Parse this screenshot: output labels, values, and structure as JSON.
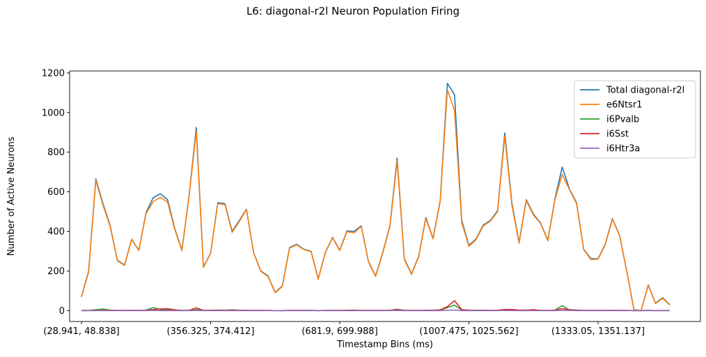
{
  "chart_data": {
    "type": "line",
    "title": "L6: diagonal-r2l Neuron Population Firing",
    "xlabel": "Timestamp Bins (ms)",
    "ylabel": "Number of Active Neurons",
    "ylim": [
      -55,
      1210
    ],
    "yticks": [
      0,
      200,
      400,
      600,
      800,
      1000,
      1200
    ],
    "xtick_labels": [
      {
        "index": 0,
        "label": "(28.941, 48.838]"
      },
      {
        "index": 18,
        "label": "(356.325, 374.412]"
      },
      {
        "index": 36,
        "label": "(681.9, 699.988]"
      },
      {
        "index": 54,
        "label": "(1007.475, 1025.562]"
      },
      {
        "index": 72,
        "label": "(1333.05, 1351.137]"
      }
    ],
    "grid": false,
    "legend_position": "top-right",
    "series": [
      {
        "name": "Total diagonal-r2l",
        "color": "#1f77b4",
        "values": [
          70,
          200,
          665,
          540,
          430,
          255,
          230,
          360,
          305,
          495,
          570,
          590,
          560,
          415,
          305,
          580,
          925,
          220,
          290,
          545,
          540,
          400,
          455,
          512,
          292,
          200,
          175,
          92,
          125,
          318,
          335,
          310,
          300,
          160,
          295,
          370,
          305,
          402,
          400,
          428,
          248,
          175,
          295,
          430,
          770,
          262,
          185,
          275,
          470,
          365,
          555,
          1148,
          1090,
          455,
          330,
          362,
          432,
          455,
          505,
          897,
          540,
          345,
          560,
          487,
          442,
          355,
          565,
          725,
          615,
          545,
          310,
          262,
          262,
          335,
          465,
          380,
          200,
          5,
          0,
          130,
          38,
          65,
          30
        ]
      },
      {
        "name": "e6Ntsr1",
        "color": "#ff7f0e",
        "values": [
          68,
          195,
          658,
          532,
          425,
          252,
          228,
          358,
          303,
          490,
          550,
          572,
          548,
          410,
          302,
          575,
          905,
          218,
          288,
          540,
          535,
          395,
          450,
          510,
          290,
          198,
          172,
          90,
          122,
          315,
          332,
          308,
          298,
          158,
          293,
          368,
          303,
          398,
          393,
          425,
          245,
          172,
          292,
          426,
          755,
          258,
          182,
          272,
          465,
          362,
          550,
          1115,
          1010,
          445,
          325,
          358,
          428,
          452,
          500,
          880,
          530,
          340,
          555,
          482,
          440,
          352,
          560,
          688,
          612,
          540,
          308,
          258,
          260,
          332,
          462,
          378,
          198,
          3,
          0,
          128,
          36,
          62,
          28
        ]
      },
      {
        "name": "i6Pvalb",
        "color": "#2ca02c",
        "values": [
          0,
          0,
          5,
          8,
          3,
          1,
          1,
          2,
          1,
          3,
          15,
          5,
          4,
          2,
          1,
          2,
          5,
          1,
          2,
          3,
          2,
          4,
          2,
          2,
          1,
          1,
          1,
          0,
          0,
          1,
          1,
          1,
          1,
          0,
          1,
          1,
          1,
          2,
          3,
          1,
          1,
          1,
          1,
          2,
          7,
          2,
          1,
          1,
          2,
          1,
          2,
          15,
          28,
          3,
          2,
          2,
          2,
          1,
          2,
          3,
          3,
          2,
          3,
          2,
          2,
          1,
          3,
          25,
          3,
          3,
          1,
          1,
          1,
          1,
          1,
          1,
          1,
          0,
          0,
          1,
          0,
          0,
          0
        ]
      },
      {
        "name": "i6Sst",
        "color": "#d62728",
        "values": [
          1,
          1,
          1,
          2,
          2,
          1,
          1,
          1,
          1,
          2,
          5,
          8,
          10,
          4,
          1,
          1,
          14,
          1,
          1,
          2,
          2,
          2,
          1,
          2,
          1,
          1,
          1,
          0,
          0,
          1,
          1,
          1,
          1,
          0,
          1,
          1,
          1,
          1,
          2,
          1,
          1,
          1,
          1,
          1,
          5,
          1,
          1,
          1,
          2,
          2,
          4,
          20,
          50,
          5,
          2,
          1,
          2,
          1,
          2,
          6,
          6,
          3,
          2,
          5,
          1,
          1,
          2,
          10,
          5,
          2,
          1,
          1,
          1,
          1,
          2,
          1,
          1,
          0,
          0,
          1,
          0,
          1,
          0
        ]
      },
      {
        "name": "i6Htr3a",
        "color": "#9467bd",
        "values": [
          0,
          0,
          0,
          0,
          0,
          0,
          0,
          0,
          0,
          0,
          1,
          0,
          0,
          0,
          0,
          0,
          1,
          0,
          0,
          0,
          0,
          0,
          0,
          0,
          0,
          0,
          0,
          0,
          0,
          0,
          0,
          0,
          0,
          0,
          0,
          0,
          0,
          0,
          0,
          0,
          0,
          0,
          0,
          0,
          1,
          0,
          0,
          0,
          0,
          0,
          0,
          2,
          3,
          0,
          0,
          0,
          0,
          0,
          0,
          1,
          0,
          0,
          0,
          0,
          0,
          0,
          0,
          2,
          1,
          0,
          0,
          0,
          0,
          0,
          0,
          0,
          0,
          0,
          0,
          0,
          0,
          0,
          0
        ]
      }
    ]
  }
}
